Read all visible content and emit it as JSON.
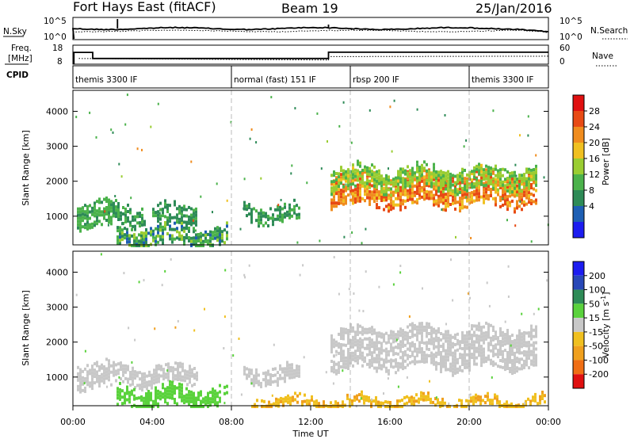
{
  "header": {
    "station": "Fort Hays East (fitACF)",
    "beam": "Beam 19",
    "date": "25/Jan/2016"
  },
  "noise_panel": {
    "left_label": "N.Sky",
    "left_top_tick": "10^5",
    "left_bottom_tick": "10^0",
    "right_label": "N.Search",
    "right_top_tick": "10^5",
    "right_bottom_tick": "10^0"
  },
  "freq_panel": {
    "left_label_1": "Freq.",
    "left_label_2": "[MHz]",
    "left_top_tick": "18",
    "left_bottom_tick": "8",
    "right_label": "Nave",
    "right_top_tick": "60",
    "right_bottom_tick": "0"
  },
  "cpid_panel": {
    "label": "CPID",
    "modes": [
      {
        "label": "themis 3300 IF",
        "start_hour": 0
      },
      {
        "label": "normal (fast) 151 IF",
        "start_hour": 8
      },
      {
        "label": "rbsp 200 IF",
        "start_hour": 14
      },
      {
        "label": "themis 3300 IF",
        "start_hour": 20
      }
    ]
  },
  "time_axis": {
    "label": "Time UT",
    "ticks": [
      "00:00",
      "04:00",
      "08:00",
      "12:00",
      "16:00",
      "20:00",
      "00:00"
    ]
  },
  "colors": {
    "power": [
      "#1c1cf0",
      "#1e5fb4",
      "#2e8b57",
      "#4bb24b",
      "#9acd32",
      "#f0c020",
      "#f08c1e",
      "#e84a14",
      "#e01010"
    ],
    "velocity": [
      "#1c1cf0",
      "#2848b8",
      "#2e8b57",
      "#5ad23c",
      "#c8c8c8",
      "#f0c020",
      "#f0a01e",
      "#f06e14",
      "#e01010"
    ]
  },
  "chart_data": [
    {
      "type": "heatmap",
      "name": "power",
      "ylabel": "Slant Range [km]",
      "xlim": [
        0,
        24
      ],
      "ylim": [
        180,
        4600
      ],
      "yticks": [
        "1000",
        "2000",
        "3000",
        "4000"
      ],
      "colorbar_label": "Power [dB]",
      "colorbar_ticks": [
        "4",
        "8",
        "12",
        "16",
        "20",
        "24",
        "28"
      ],
      "colorbar_range": [
        0,
        32
      ],
      "regions": [
        {
          "x0": 0.2,
          "x1": 2.0,
          "y0": 700,
          "y1": 1400,
          "values": [
            10,
            13
          ]
        },
        {
          "x0": 2.0,
          "x1": 3.6,
          "y0": 780,
          "y1": 1300,
          "values": [
            8,
            12
          ]
        },
        {
          "x0": 4.0,
          "x1": 6.2,
          "y0": 780,
          "y1": 1300,
          "values": [
            8,
            12
          ]
        },
        {
          "x0": 2.2,
          "x1": 7.8,
          "y0": 200,
          "y1": 700,
          "values": [
            6,
            16
          ]
        },
        {
          "x0": 8.6,
          "x1": 11.4,
          "y0": 850,
          "y1": 1300,
          "values": [
            8,
            12
          ]
        },
        {
          "x0": 13.0,
          "x1": 23.4,
          "y0": 1300,
          "y1": 2200,
          "values": [
            20,
            28
          ]
        },
        {
          "x0": 13.0,
          "x1": 23.4,
          "y0": 1800,
          "y1": 2400,
          "values": [
            12,
            18
          ]
        }
      ]
    },
    {
      "type": "heatmap",
      "name": "velocity",
      "ylabel": "Slant Range [km]",
      "xlim": [
        0,
        24
      ],
      "ylim": [
        180,
        4600
      ],
      "yticks": [
        "1000",
        "2000",
        "3000",
        "4000"
      ],
      "colorbar_label": "Velocity [m s^-1]",
      "colorbar_ticks": [
        "200",
        "100",
        "50",
        "15",
        "-15",
        "-50",
        "-100",
        "-200"
      ],
      "regions": [
        {
          "x0": 0.2,
          "x1": 2.0,
          "y0": 700,
          "y1": 1400,
          "values": [
            -10,
            10
          ]
        },
        {
          "x0": 2.0,
          "x1": 6.2,
          "y0": 780,
          "y1": 1300,
          "values": [
            -10,
            10
          ]
        },
        {
          "x0": 2.2,
          "x1": 7.8,
          "y0": 200,
          "y1": 700,
          "values": [
            20,
            40
          ]
        },
        {
          "x0": 8.6,
          "x1": 11.4,
          "y0": 850,
          "y1": 1300,
          "values": [
            -10,
            10
          ]
        },
        {
          "x0": 13.0,
          "x1": 23.4,
          "y0": 1300,
          "y1": 2400,
          "values": [
            -10,
            10
          ]
        },
        {
          "x0": 9.0,
          "x1": 23.8,
          "y0": 200,
          "y1": 400,
          "values": [
            -60,
            -20
          ]
        }
      ]
    }
  ]
}
